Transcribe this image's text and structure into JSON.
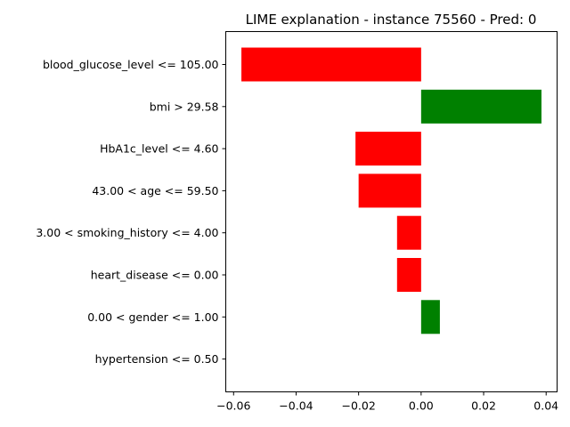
{
  "chart_data": {
    "type": "bar",
    "orientation": "horizontal",
    "title": "LIME explanation - instance 75560 - Pred: 0",
    "xlabel": "",
    "ylabel": "",
    "xlim": [
      -0.0625,
      0.0435
    ],
    "xticks": [
      -0.06,
      -0.04,
      -0.02,
      0.0,
      0.02,
      0.04
    ],
    "xtick_labels": [
      "−0.06",
      "−0.04",
      "−0.02",
      "0.00",
      "0.02",
      "0.04"
    ],
    "grid": false,
    "legend": "none",
    "positive_color": "#008000",
    "negative_color": "#ff0000",
    "categories": [
      "blood_glucose_level <= 105.00",
      "bmi > 29.58",
      "HbA1c_level <= 4.60",
      "43.00 < age <= 59.50",
      "3.00 < smoking_history <= 4.00",
      "heart_disease <= 0.00",
      "0.00 < gender <= 1.00",
      "hypertension <= 0.50"
    ],
    "values": [
      -0.0575,
      0.0385,
      -0.021,
      -0.02,
      -0.0077,
      -0.0077,
      0.006,
      0.0
    ]
  }
}
